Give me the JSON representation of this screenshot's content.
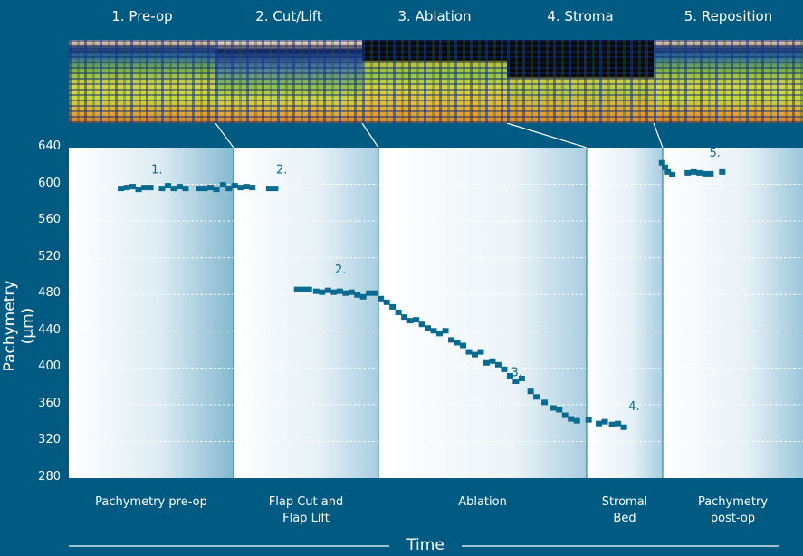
{
  "stages": [
    {
      "header": "1. Pre-op",
      "footer": [
        "Pachymetry pre-op"
      ],
      "thumb_style": "full"
    },
    {
      "header": "2. Cut/Lift",
      "footer": [
        "Flap Cut and",
        "Flap Lift"
      ],
      "thumb_style": "flap"
    },
    {
      "header": "3. Ablation",
      "footer": [
        "Ablation"
      ],
      "thumb_style": "dark-top"
    },
    {
      "header": "4. Stroma",
      "footer": [
        "Stromal",
        "Bed"
      ],
      "thumb_style": "dark-top-thin"
    },
    {
      "header": "5. Reposition",
      "footer": [
        "Pachymetry",
        "post-op"
      ],
      "thumb_style": "full"
    }
  ],
  "axis": {
    "ylabel": "Pachymetry (µm)",
    "xlabel": "Time"
  },
  "colors": {
    "background": "#005a82",
    "marker": "#0a6a8f",
    "annotation": "#0a6a8f",
    "panel_edge": "#7fb6cf"
  },
  "chart_data": {
    "type": "scatter",
    "ylim": [
      280,
      640
    ],
    "yticks": [
      640,
      600,
      560,
      520,
      480,
      440,
      400,
      360,
      320,
      280
    ],
    "xlabel": "Time",
    "ylabel": "Pachymetry (µm)",
    "grid": "horizontal dashed",
    "annotations": [
      {
        "label": "1.",
        "x": 0.12,
        "y": 612
      },
      {
        "label": "2.",
        "x": 0.29,
        "y": 612
      },
      {
        "label": "2.",
        "x": 0.37,
        "y": 503
      },
      {
        "label": "3.",
        "x": 0.61,
        "y": 391
      },
      {
        "label": "4.",
        "x": 0.77,
        "y": 354
      },
      {
        "label": "5.",
        "x": 0.88,
        "y": 630
      }
    ],
    "series": [
      {
        "points": [
          [
            0.071,
            595
          ],
          [
            0.079,
            596
          ],
          [
            0.087,
            597
          ],
          [
            0.095,
            594
          ],
          [
            0.103,
            596
          ],
          [
            0.111,
            596
          ],
          [
            0.127,
            595
          ],
          [
            0.135,
            598
          ],
          [
            0.143,
            595
          ],
          [
            0.151,
            597
          ],
          [
            0.159,
            595
          ],
          [
            0.177,
            595
          ],
          [
            0.185,
            595
          ],
          [
            0.193,
            596
          ],
          [
            0.201,
            594
          ],
          [
            0.21,
            599
          ],
          [
            0.218,
            595
          ],
          [
            0.226,
            598
          ],
          [
            0.234,
            596
          ],
          [
            0.242,
            597
          ],
          [
            0.25,
            596
          ],
          [
            0.273,
            595
          ],
          [
            0.281,
            595
          ],
          [
            0.311,
            485
          ],
          [
            0.319,
            485
          ],
          [
            0.327,
            485
          ],
          [
            0.337,
            483
          ],
          [
            0.345,
            482
          ],
          [
            0.353,
            484
          ],
          [
            0.361,
            482
          ],
          [
            0.369,
            483
          ],
          [
            0.377,
            481
          ],
          [
            0.385,
            482
          ],
          [
            0.393,
            479
          ],
          [
            0.401,
            477
          ],
          [
            0.409,
            481
          ],
          [
            0.417,
            481
          ],
          [
            0.425,
            475
          ],
          [
            0.433,
            471
          ],
          [
            0.441,
            466
          ],
          [
            0.449,
            460
          ],
          [
            0.457,
            455
          ],
          [
            0.465,
            451
          ],
          [
            0.473,
            452
          ],
          [
            0.481,
            447
          ],
          [
            0.489,
            443
          ],
          [
            0.497,
            440
          ],
          [
            0.505,
            437
          ],
          [
            0.513,
            440
          ],
          [
            0.521,
            430
          ],
          [
            0.529,
            427
          ],
          [
            0.537,
            424
          ],
          [
            0.545,
            417
          ],
          [
            0.553,
            414
          ],
          [
            0.561,
            417
          ],
          [
            0.569,
            405
          ],
          [
            0.577,
            407
          ],
          [
            0.585,
            403
          ],
          [
            0.593,
            398
          ],
          [
            0.601,
            391
          ],
          [
            0.609,
            385
          ],
          [
            0.617,
            388
          ],
          [
            0.629,
            374
          ],
          [
            0.637,
            368
          ],
          [
            0.648,
            362
          ],
          [
            0.66,
            356
          ],
          [
            0.668,
            354
          ],
          [
            0.676,
            348
          ],
          [
            0.684,
            344
          ],
          [
            0.692,
            342
          ],
          [
            0.708,
            343
          ],
          [
            0.722,
            339
          ],
          [
            0.73,
            341
          ],
          [
            0.74,
            338
          ],
          [
            0.748,
            339
          ],
          [
            0.756,
            335
          ],
          [
            0.808,
            623
          ],
          [
            0.812,
            618
          ],
          [
            0.816,
            613
          ],
          [
            0.822,
            610
          ],
          [
            0.843,
            612
          ],
          [
            0.851,
            613
          ],
          [
            0.859,
            612
          ],
          [
            0.867,
            611
          ],
          [
            0.874,
            611
          ],
          [
            0.89,
            613
          ]
        ]
      }
    ]
  }
}
